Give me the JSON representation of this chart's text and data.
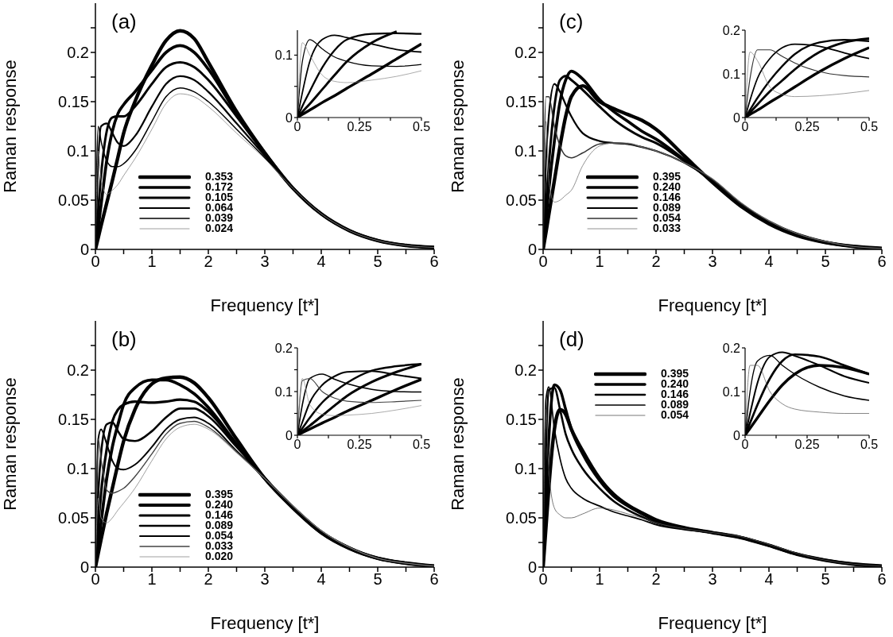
{
  "chart_data": [
    {
      "type": "line",
      "title": "(a)",
      "xlabel": "Frequency [t*]",
      "ylabel": "Raman response",
      "legend": "bottom left",
      "xlim": [
        0,
        6
      ],
      "ylim": [
        0,
        0.25
      ],
      "xticks": [
        0,
        {
          "value": 0.5,
          "label": null
        },
        1,
        {
          "value": 1.5,
          "label": null
        },
        2,
        {
          "value": 2.5,
          "label": null
        },
        3,
        {
          "value": 3.5,
          "label": null
        },
        4,
        {
          "value": 4.5,
          "label": null
        },
        5,
        {
          "value": 5.5,
          "label": null
        },
        6
      ],
      "yticks": [
        0,
        {
          "value": 0.025,
          "label": null
        },
        0.05,
        {
          "value": 0.075,
          "label": null
        },
        0.1,
        {
          "value": 0.125,
          "label": null
        },
        0.15,
        {
          "value": 0.175,
          "label": null
        },
        0.2,
        {
          "value": 0.225,
          "label": null
        }
      ],
      "x": [
        0,
        0.05,
        0.1,
        0.2,
        0.3,
        0.4,
        0.5,
        0.7,
        1,
        1.25,
        1.5,
        1.75,
        2,
        2.5,
        3,
        3.5,
        4,
        4.5,
        5,
        5.5,
        6
      ],
      "series": [
        {
          "name": "0.353",
          "color": "#000000",
          "values": [
            0,
            0.012,
            0.024,
            0.047,
            0.07,
            0.094,
            0.118,
            0.15,
            0.187,
            0.212,
            0.222,
            0.214,
            0.19,
            0.14,
            0.098,
            0.062,
            0.036,
            0.019,
            0.009,
            0.004,
            0.002
          ]
        },
        {
          "name": "0.172",
          "color": "#000000",
          "values": [
            0,
            0.022,
            0.045,
            0.09,
            0.12,
            0.138,
            0.147,
            0.16,
            0.182,
            0.2,
            0.207,
            0.2,
            0.183,
            0.138,
            0.098,
            0.062,
            0.036,
            0.019,
            0.009,
            0.004,
            0.002
          ]
        },
        {
          "name": "0.105",
          "color": "#000000",
          "values": [
            0,
            0.04,
            0.075,
            0.12,
            0.134,
            0.135,
            0.135,
            0.145,
            0.168,
            0.185,
            0.19,
            0.185,
            0.172,
            0.135,
            0.097,
            0.062,
            0.036,
            0.019,
            0.009,
            0.004,
            0.002
          ]
        },
        {
          "name": "0.064",
          "color": "#000000",
          "values": [
            0,
            0.09,
            0.125,
            0.128,
            0.118,
            0.108,
            0.105,
            0.115,
            0.145,
            0.168,
            0.176,
            0.172,
            0.16,
            0.128,
            0.095,
            0.062,
            0.036,
            0.019,
            0.009,
            0.004,
            0.002
          ]
        },
        {
          "name": "0.039",
          "color": "#000000",
          "values": [
            0,
            0.125,
            0.11,
            0.09,
            0.084,
            0.084,
            0.087,
            0.1,
            0.13,
            0.155,
            0.164,
            0.16,
            0.15,
            0.122,
            0.093,
            0.062,
            0.036,
            0.019,
            0.009,
            0.004,
            0.002
          ]
        },
        {
          "name": "0.024",
          "color": "#888888",
          "values": [
            0,
            0.1,
            0.07,
            0.056,
            0.06,
            0.066,
            0.075,
            0.092,
            0.122,
            0.148,
            0.158,
            0.155,
            0.145,
            0.118,
            0.092,
            0.062,
            0.036,
            0.019,
            0.009,
            0.004,
            0.002
          ]
        }
      ]
    },
    {
      "type": "line",
      "xlim": [
        0,
        0.5
      ],
      "ylim": [
        0,
        0.14
      ],
      "xticks": [
        0,
        {
          "value": 0.125,
          "label": null
        },
        0.25,
        {
          "value": 0.375,
          "label": null
        },
        0.5
      ],
      "yticks": [
        0,
        {
          "value": 0.05,
          "label": null
        },
        0.1
      ],
      "x": [
        0,
        0.02,
        0.05,
        0.1,
        0.15,
        0.2,
        0.3,
        0.4,
        0.5
      ],
      "series": [
        {
          "color": "#000000",
          "values": [
            0,
            0.005,
            0.012,
            0.024,
            0.035,
            0.047,
            0.07,
            0.094,
            0.118
          ]
        },
        {
          "color": "#000000",
          "values": [
            0,
            0.009,
            0.022,
            0.045,
            0.068,
            0.09,
            0.12,
            0.138,
            null
          ]
        },
        {
          "color": "#000000",
          "values": [
            0,
            0.018,
            0.042,
            0.08,
            0.108,
            0.125,
            0.134,
            0.135,
            0.134
          ]
        },
        {
          "color": "#000000",
          "values": [
            0,
            0.04,
            0.09,
            0.125,
            0.132,
            0.128,
            0.118,
            0.109,
            0.105
          ]
        },
        {
          "color": "#000000",
          "values": [
            0,
            0.09,
            0.125,
            0.11,
            0.097,
            0.09,
            0.083,
            0.082,
            0.085
          ]
        },
        {
          "color": "#888888",
          "values": [
            0,
            0.12,
            0.1,
            0.068,
            0.058,
            0.056,
            0.06,
            0.066,
            0.075
          ]
        }
      ]
    },
    {
      "type": "line",
      "title": "(c)",
      "xlabel": "Frequency [t*]",
      "ylabel": "Raman response",
      "legend": "bottom left",
      "xlim": [
        0,
        6
      ],
      "ylim": [
        0,
        0.25
      ],
      "xticks": [
        0,
        {
          "value": 0.5,
          "label": null
        },
        1,
        {
          "value": 1.5,
          "label": null
        },
        2,
        {
          "value": 2.5,
          "label": null
        },
        3,
        {
          "value": 3.5,
          "label": null
        },
        4,
        {
          "value": 4.5,
          "label": null
        },
        5,
        {
          "value": 5.5,
          "label": null
        },
        6
      ],
      "yticks": [
        0,
        {
          "value": 0.025,
          "label": null
        },
        0.05,
        {
          "value": 0.075,
          "label": null
        },
        0.1,
        {
          "value": 0.125,
          "label": null
        },
        0.15,
        {
          "value": 0.175,
          "label": null
        },
        0.2,
        {
          "value": 0.225,
          "label": null
        }
      ],
      "x": [
        0,
        0.05,
        0.1,
        0.2,
        0.3,
        0.4,
        0.5,
        0.7,
        1,
        1.25,
        1.5,
        1.75,
        2,
        2.5,
        3,
        3.5,
        4,
        4.5,
        5,
        5.5,
        6
      ],
      "series": [
        {
          "name": "0.395",
          "color": "#000000",
          "values": [
            0,
            0.017,
            0.035,
            0.07,
            0.105,
            0.135,
            0.155,
            0.166,
            0.15,
            0.143,
            0.137,
            0.131,
            0.122,
            0.095,
            0.068,
            0.044,
            0.026,
            0.014,
            0.007,
            0.003,
            0.001
          ]
        },
        {
          "name": "0.240",
          "color": "#000000",
          "values": [
            0,
            0.03,
            0.06,
            0.11,
            0.15,
            0.172,
            0.181,
            0.173,
            0.152,
            0.14,
            0.13,
            0.12,
            0.112,
            0.091,
            0.069,
            0.045,
            0.027,
            0.015,
            0.007,
            0.003,
            0.001
          ]
        },
        {
          "name": "0.146",
          "color": "#000000",
          "values": [
            0,
            0.045,
            0.085,
            0.145,
            0.172,
            0.176,
            0.172,
            0.162,
            0.145,
            0.132,
            0.122,
            0.114,
            0.108,
            0.09,
            0.069,
            0.045,
            0.027,
            0.015,
            0.007,
            0.003,
            0.001
          ]
        },
        {
          "name": "0.089",
          "color": "#000000",
          "values": [
            0,
            0.09,
            0.135,
            0.168,
            0.16,
            0.147,
            0.135,
            0.118,
            0.11,
            0.108,
            0.107,
            0.104,
            0.1,
            0.088,
            0.07,
            0.046,
            0.028,
            0.016,
            0.008,
            0.003,
            0.001
          ]
        },
        {
          "name": "0.054",
          "color": "#333333",
          "values": [
            0,
            0.155,
            0.155,
            0.125,
            0.105,
            0.095,
            0.093,
            0.098,
            0.107,
            0.108,
            0.107,
            0.104,
            0.1,
            0.088,
            0.071,
            0.047,
            0.029,
            0.016,
            0.008,
            0.003,
            0.001
          ]
        },
        {
          "name": "0.033",
          "color": "#777777",
          "values": [
            0,
            0.13,
            0.07,
            0.048,
            0.05,
            0.055,
            0.06,
            0.085,
            0.105,
            0.108,
            0.108,
            0.104,
            0.1,
            0.088,
            0.072,
            0.048,
            0.029,
            0.016,
            0.008,
            0.003,
            0.001
          ]
        }
      ]
    },
    {
      "type": "line",
      "xlim": [
        0,
        0.5
      ],
      "ylim": [
        0,
        0.2
      ],
      "xticks": [
        0,
        {
          "value": 0.125,
          "label": null
        },
        0.25,
        {
          "value": 0.375,
          "label": null
        },
        0.5
      ],
      "yticks": [
        0,
        {
          "value": 0.05,
          "label": null
        },
        0.1,
        {
          "value": 0.15,
          "label": null
        },
        0.2
      ],
      "x": [
        0,
        0.02,
        0.05,
        0.1,
        0.15,
        0.2,
        0.3,
        0.4,
        0.5
      ],
      "series": [
        {
          "color": "#000000",
          "values": [
            0,
            0.007,
            0.017,
            0.035,
            0.052,
            0.07,
            0.105,
            0.135,
            0.16
          ]
        },
        {
          "color": "#000000",
          "values": [
            0,
            0.012,
            0.03,
            0.06,
            0.085,
            0.11,
            0.15,
            0.172,
            0.181
          ]
        },
        {
          "color": "#000000",
          "values": [
            0,
            0.018,
            0.045,
            0.085,
            0.118,
            0.145,
            0.172,
            0.178,
            0.175
          ]
        },
        {
          "color": "#000000",
          "values": [
            0,
            0.04,
            0.09,
            0.135,
            0.16,
            0.168,
            0.163,
            0.148,
            0.135
          ]
        },
        {
          "color": "#333333",
          "values": [
            0,
            0.09,
            0.155,
            0.155,
            0.14,
            0.125,
            0.105,
            0.096,
            0.093
          ]
        },
        {
          "color": "#777777",
          "values": [
            0,
            0.15,
            0.13,
            0.07,
            0.053,
            0.048,
            0.05,
            0.055,
            0.062
          ]
        }
      ]
    },
    {
      "type": "line",
      "title": "(b)",
      "xlabel": "Frequency [t*]",
      "ylabel": "Raman response",
      "legend": "bottom left",
      "xlim": [
        0,
        6
      ],
      "ylim": [
        0,
        0.25
      ],
      "xticks": [
        0,
        {
          "value": 0.5,
          "label": null
        },
        1,
        {
          "value": 1.5,
          "label": null
        },
        2,
        {
          "value": 2.5,
          "label": null
        },
        3,
        {
          "value": 3.5,
          "label": null
        },
        4,
        {
          "value": 4.5,
          "label": null
        },
        5,
        {
          "value": 5.5,
          "label": null
        },
        6
      ],
      "yticks": [
        0,
        {
          "value": 0.025,
          "label": null
        },
        0.05,
        {
          "value": 0.075,
          "label": null
        },
        0.1,
        {
          "value": 0.125,
          "label": null
        },
        0.15,
        {
          "value": 0.175,
          "label": null
        },
        0.2,
        {
          "value": 0.225,
          "label": null
        }
      ],
      "x": [
        0,
        0.05,
        0.1,
        0.2,
        0.3,
        0.4,
        0.5,
        0.7,
        1,
        1.25,
        1.5,
        1.75,
        2,
        2.5,
        3,
        3.5,
        4,
        4.5,
        5,
        5.5,
        6
      ],
      "series": [
        {
          "name": "0.395",
          "color": "#000000",
          "values": [
            0,
            0.014,
            0.028,
            0.055,
            0.08,
            0.105,
            0.128,
            0.16,
            0.186,
            0.192,
            0.193,
            0.187,
            0.172,
            0.13,
            0.09,
            0.06,
            0.035,
            0.019,
            0.009,
            0.004,
            0.001
          ]
        },
        {
          "name": "0.240",
          "color": "#000000",
          "values": [
            0,
            0.022,
            0.045,
            0.09,
            0.122,
            0.145,
            0.165,
            0.182,
            0.19,
            0.19,
            0.185,
            0.176,
            0.162,
            0.125,
            0.09,
            0.06,
            0.035,
            0.019,
            0.009,
            0.004,
            0.001
          ]
        },
        {
          "name": "0.146",
          "color": "#000000",
          "values": [
            0,
            0.04,
            0.075,
            0.12,
            0.148,
            0.16,
            0.165,
            0.168,
            0.167,
            0.168,
            0.17,
            0.168,
            0.158,
            0.124,
            0.09,
            0.061,
            0.036,
            0.019,
            0.009,
            0.004,
            0.001
          ]
        },
        {
          "name": "0.089",
          "color": "#000000",
          "values": [
            0,
            0.075,
            0.115,
            0.145,
            0.147,
            0.138,
            0.13,
            0.128,
            0.138,
            0.152,
            0.161,
            0.161,
            0.153,
            0.122,
            0.09,
            0.061,
            0.036,
            0.02,
            0.009,
            0.004,
            0.001
          ]
        },
        {
          "name": "0.054",
          "color": "#000000",
          "values": [
            0,
            0.13,
            0.14,
            0.125,
            0.108,
            0.1,
            0.099,
            0.104,
            0.122,
            0.14,
            0.15,
            0.152,
            0.146,
            0.118,
            0.09,
            0.061,
            0.036,
            0.02,
            0.009,
            0.004,
            0.001
          ]
        },
        {
          "name": "0.033",
          "color": "#444444",
          "values": [
            0,
            0.13,
            0.11,
            0.078,
            0.075,
            0.077,
            0.08,
            0.092,
            0.115,
            0.135,
            0.146,
            0.148,
            0.142,
            0.117,
            0.09,
            0.062,
            0.037,
            0.02,
            0.009,
            0.004,
            0.001
          ]
        },
        {
          "name": "0.020",
          "color": "#888888",
          "values": [
            0,
            0.07,
            0.05,
            0.045,
            0.05,
            0.058,
            0.065,
            0.08,
            0.108,
            0.13,
            0.142,
            0.145,
            0.14,
            0.116,
            0.09,
            0.062,
            0.037,
            0.02,
            0.009,
            0.004,
            0.001
          ]
        }
      ]
    },
    {
      "type": "line",
      "xlim": [
        0,
        0.5
      ],
      "ylim": [
        0,
        0.2
      ],
      "xticks": [
        0,
        {
          "value": 0.125,
          "label": null
        },
        0.25,
        {
          "value": 0.375,
          "label": null
        },
        0.5
      ],
      "yticks": [
        0,
        {
          "value": 0.05,
          "label": null
        },
        0.1,
        {
          "value": 0.15,
          "label": null
        },
        0.2
      ],
      "x": [
        0,
        0.02,
        0.05,
        0.1,
        0.15,
        0.2,
        0.3,
        0.4,
        0.5
      ],
      "series": [
        {
          "color": "#000000",
          "values": [
            0,
            0.006,
            0.014,
            0.028,
            0.041,
            0.055,
            0.08,
            0.105,
            0.128
          ]
        },
        {
          "color": "#000000",
          "values": [
            0,
            0.009,
            0.022,
            0.045,
            0.068,
            0.09,
            0.122,
            0.145,
            0.163
          ]
        },
        {
          "color": "#000000",
          "values": [
            0,
            0.016,
            0.04,
            0.075,
            0.1,
            0.12,
            0.148,
            0.158,
            0.163
          ]
        },
        {
          "color": "#000000",
          "values": [
            0,
            0.03,
            0.075,
            0.115,
            0.135,
            0.145,
            0.147,
            0.138,
            0.13
          ]
        },
        {
          "color": "#000000",
          "values": [
            0,
            0.07,
            0.13,
            0.14,
            0.128,
            0.118,
            0.105,
            0.1,
            0.099
          ]
        },
        {
          "color": "#444444",
          "values": [
            0,
            0.125,
            0.13,
            0.1,
            0.085,
            0.078,
            0.075,
            0.077,
            0.08
          ]
        },
        {
          "color": "#888888",
          "values": [
            0,
            0.13,
            0.07,
            0.048,
            0.045,
            0.046,
            0.05,
            0.058,
            0.068
          ]
        }
      ]
    },
    {
      "type": "line",
      "title": "(d)",
      "xlabel": "Frequency [t*]",
      "ylabel": "Raman response",
      "legend": "top left",
      "xlim": [
        0,
        6
      ],
      "ylim": [
        0,
        0.25
      ],
      "xticks": [
        0,
        {
          "value": 0.5,
          "label": null
        },
        1,
        {
          "value": 1.5,
          "label": null
        },
        2,
        {
          "value": 2.5,
          "label": null
        },
        3,
        {
          "value": 3.5,
          "label": null
        },
        4,
        {
          "value": 4.5,
          "label": null
        },
        5,
        {
          "value": 5.5,
          "label": null
        },
        6
      ],
      "yticks": [
        0,
        {
          "value": 0.025,
          "label": null
        },
        0.05,
        {
          "value": 0.075,
          "label": null
        },
        0.1,
        {
          "value": 0.125,
          "label": null
        },
        0.15,
        {
          "value": 0.175,
          "label": null
        },
        0.2,
        {
          "value": 0.225,
          "label": null
        }
      ],
      "x": [
        0,
        0.05,
        0.1,
        0.2,
        0.3,
        0.4,
        0.5,
        0.7,
        1,
        1.25,
        1.5,
        1.75,
        2,
        2.5,
        3,
        3.5,
        4,
        4.5,
        5,
        5.5,
        6
      ],
      "series": [
        {
          "name": "0.395",
          "color": "#000000",
          "values": [
            0,
            0.04,
            0.08,
            0.14,
            0.16,
            0.155,
            0.14,
            0.118,
            0.09,
            0.074,
            0.063,
            0.055,
            0.048,
            0.04,
            0.035,
            0.03,
            0.022,
            0.013,
            0.007,
            0.003,
            0.001
          ]
        },
        {
          "name": "0.240",
          "color": "#000000",
          "values": [
            0,
            0.07,
            0.13,
            0.185,
            0.18,
            0.16,
            0.14,
            0.115,
            0.088,
            0.072,
            0.062,
            0.054,
            0.047,
            0.04,
            0.035,
            0.03,
            0.022,
            0.013,
            0.007,
            0.003,
            0.001
          ]
        },
        {
          "name": "0.146",
          "color": "#000000",
          "values": [
            0,
            0.12,
            0.18,
            0.182,
            0.16,
            0.135,
            0.12,
            0.1,
            0.08,
            0.067,
            0.058,
            0.051,
            0.045,
            0.039,
            0.035,
            0.03,
            0.022,
            0.013,
            0.007,
            0.003,
            0.001
          ]
        },
        {
          "name": "0.089",
          "color": "#000000",
          "values": [
            0,
            0.17,
            0.183,
            0.14,
            0.11,
            0.09,
            0.08,
            0.07,
            0.062,
            0.056,
            0.052,
            0.048,
            0.043,
            0.038,
            0.035,
            0.031,
            0.023,
            0.014,
            0.007,
            0.003,
            0.001
          ]
        },
        {
          "name": "0.054",
          "color": "#555555",
          "values": [
            0,
            0.16,
            0.1,
            0.06,
            0.053,
            0.05,
            0.05,
            0.054,
            0.06,
            0.058,
            0.054,
            0.05,
            0.045,
            0.039,
            0.035,
            0.031,
            0.023,
            0.014,
            0.007,
            0.003,
            0.001
          ]
        }
      ]
    },
    {
      "type": "line",
      "xlim": [
        0,
        0.5
      ],
      "ylim": [
        0,
        0.2
      ],
      "xticks": [
        0,
        {
          "value": 0.125,
          "label": null
        },
        0.25,
        {
          "value": 0.375,
          "label": null
        },
        0.5
      ],
      "yticks": [
        0,
        {
          "value": 0.05,
          "label": null
        },
        0.1,
        {
          "value": 0.15,
          "label": null
        },
        0.2
      ],
      "x": [
        0,
        0.02,
        0.05,
        0.1,
        0.15,
        0.2,
        0.3,
        0.4,
        0.5
      ],
      "series": [
        {
          "color": "#000000",
          "values": [
            0,
            0.016,
            0.04,
            0.08,
            0.115,
            0.14,
            0.16,
            0.155,
            0.14
          ]
        },
        {
          "color": "#000000",
          "values": [
            0,
            0.028,
            0.07,
            0.13,
            0.17,
            0.185,
            0.18,
            0.16,
            0.14
          ]
        },
        {
          "color": "#000000",
          "values": [
            0,
            0.05,
            0.12,
            0.18,
            0.19,
            0.182,
            0.16,
            0.135,
            0.12
          ]
        },
        {
          "color": "#000000",
          "values": [
            0,
            0.1,
            0.17,
            0.183,
            0.16,
            0.14,
            0.11,
            0.09,
            0.08
          ]
        },
        {
          "color": "#555555",
          "values": [
            0,
            0.16,
            0.16,
            0.1,
            0.072,
            0.06,
            0.053,
            0.05,
            0.05
          ]
        }
      ]
    }
  ]
}
